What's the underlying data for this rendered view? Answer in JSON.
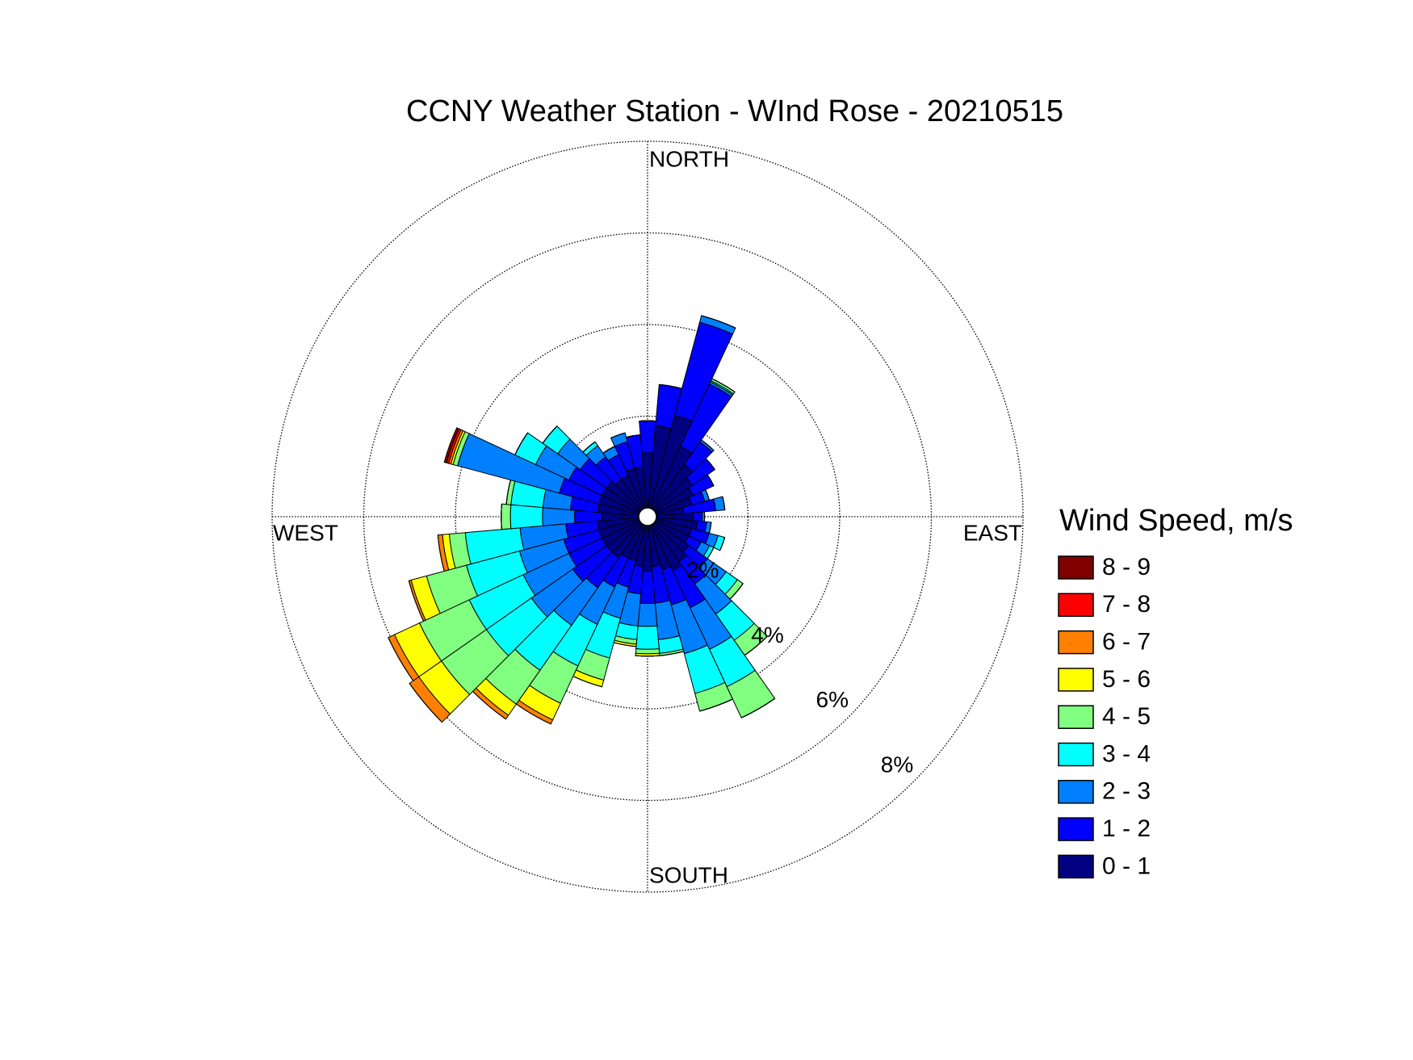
{
  "chart_data": {
    "type": "windrose",
    "title": "CCNY Weather Station - WInd Rose - 20210515",
    "legend_title": "Wind Speed, m/s",
    "direction_labels": {
      "north": "NORTH",
      "east": "EAST",
      "south": "SOUTH",
      "west": "WEST"
    },
    "x": [
      0,
      10,
      20,
      30,
      40,
      50,
      60,
      70,
      80,
      90,
      100,
      110,
      120,
      130,
      140,
      150,
      160,
      170,
      180,
      190,
      200,
      210,
      220,
      230,
      240,
      250,
      260,
      270,
      280,
      290,
      300,
      310,
      320,
      330,
      340,
      350
    ],
    "rlim": [
      0,
      8
    ],
    "rticks": [
      {
        "value": 2,
        "label": "2%"
      },
      {
        "value": 4,
        "label": "4%"
      },
      {
        "value": 6,
        "label": "6%"
      },
      {
        "value": 8,
        "label": "8%"
      }
    ],
    "series": [
      {
        "name": "0 - 1",
        "color": "#000080",
        "values": [
          1.2,
          1.8,
          2.1,
          1.5,
          1.2,
          1.0,
          0.9,
          0.8,
          0.6,
          0.8,
          0.9,
          0.8,
          0.8,
          0.9,
          1.0,
          1.1,
          1.0,
          0.9,
          1.0,
          0.9,
          0.8,
          0.8,
          0.9,
          0.9,
          0.9,
          0.9,
          0.9,
          0.8,
          0.9,
          0.9,
          0.9,
          0.9,
          0.8,
          0.8,
          0.9,
          0.9
        ]
      },
      {
        "name": "1 - 2",
        "color": "#0000ff",
        "values": [
          0.7,
          0.9,
          2.1,
          1.5,
          0.6,
          0.6,
          0.5,
          0.3,
          0.7,
          0.2,
          0.2,
          0.4,
          0.3,
          0.5,
          0.6,
          0.9,
          0.8,
          0.8,
          0.7,
          0.6,
          0.6,
          0.7,
          0.8,
          0.9,
          0.8,
          0.8,
          0.7,
          0.6,
          0.6,
          0.9,
          0.8,
          0.7,
          0.6,
          0.5,
          0.6,
          0.7
        ]
      },
      {
        "name": "2 - 3",
        "color": "#0080ff",
        "values": [
          0,
          0,
          0.15,
          0.05,
          0.05,
          0,
          0,
          0.1,
          0.2,
          0.05,
          0.1,
          0.2,
          0.2,
          0.5,
          0.8,
          1.0,
          1.1,
          0.8,
          0.5,
          0.7,
          0.7,
          0.9,
          1.0,
          1.1,
          1.1,
          1.0,
          1.0,
          0.7,
          0.6,
          2.3,
          0.8,
          0.6,
          0.3,
          0.2,
          0.2,
          0
        ]
      },
      {
        "name": "3 - 4",
        "color": "#00ffff",
        "values": [
          0,
          0,
          0,
          0.03,
          0,
          0,
          0,
          0,
          0,
          0,
          0,
          0.15,
          0.1,
          0.3,
          0.7,
          0.9,
          0.9,
          0.3,
          0.5,
          0.3,
          0.9,
          1.0,
          1.2,
          1.2,
          1.3,
          1.2,
          1.2,
          0.7,
          0.7,
          0,
          0.5,
          0.4,
          0.1,
          0,
          0,
          0
        ]
      },
      {
        "name": "4 - 5",
        "color": "#80ff80",
        "values": [
          0,
          0,
          0,
          0.05,
          0,
          0,
          0,
          0,
          0,
          0,
          0,
          0,
          0,
          0.15,
          0.4,
          0.75,
          0.4,
          0.05,
          0.1,
          0.1,
          0.5,
          0.9,
          0.9,
          1.2,
          1.2,
          0.9,
          0.35,
          0.2,
          0.1,
          0.1,
          0,
          0,
          0,
          0,
          0,
          0
        ]
      },
      {
        "name": "5 - 6",
        "color": "#ffff00",
        "values": [
          0,
          0,
          0,
          0,
          0,
          0,
          0,
          0,
          0,
          0,
          0,
          0,
          0,
          0,
          0,
          0,
          0,
          0,
          0.05,
          0.05,
          0.15,
          0.4,
          0.3,
          0.6,
          0.6,
          0.35,
          0.15,
          0,
          0,
          0.05,
          0,
          0,
          0,
          0,
          0,
          0
        ]
      },
      {
        "name": "6 - 7",
        "color": "#ff8000",
        "values": [
          0,
          0,
          0,
          0,
          0,
          0,
          0,
          0,
          0,
          0,
          0,
          0,
          0,
          0,
          0,
          0,
          0,
          0,
          0,
          0,
          0,
          0.1,
          0.1,
          0.25,
          0.15,
          0.05,
          0.1,
          0,
          0,
          0.05,
          0,
          0,
          0,
          0,
          0,
          0
        ]
      },
      {
        "name": "7 - 8",
        "color": "#ff0000",
        "values": [
          0,
          0,
          0,
          0,
          0,
          0,
          0,
          0,
          0,
          0,
          0,
          0,
          0,
          0,
          0,
          0,
          0,
          0,
          0,
          0,
          0,
          0,
          0,
          0,
          0,
          0,
          0,
          0,
          0,
          0.05,
          0,
          0,
          0,
          0,
          0,
          0
        ]
      },
      {
        "name": "8 - 9",
        "color": "#800000",
        "values": [
          0,
          0,
          0,
          0,
          0,
          0,
          0,
          0,
          0,
          0,
          0,
          0,
          0,
          0,
          0,
          0,
          0,
          0,
          0,
          0,
          0,
          0,
          0,
          0,
          0,
          0,
          0,
          0,
          0,
          0.05,
          0,
          0,
          0,
          0,
          0,
          0
        ]
      }
    ]
  }
}
